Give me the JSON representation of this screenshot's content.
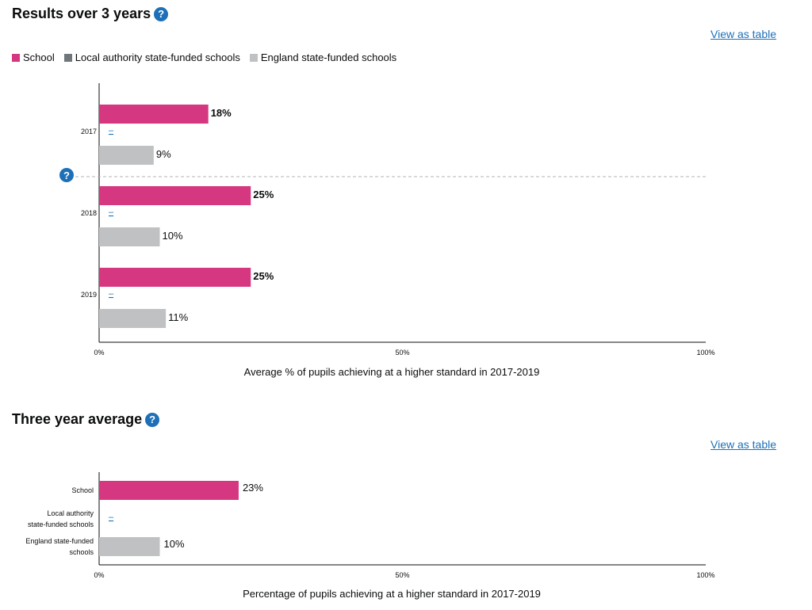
{
  "colors": {
    "school": "#d53880",
    "la": "#6f777b",
    "england": "#bfc1c3",
    "link": "#1d70b8"
  },
  "section1": {
    "title": "Results over 3 years",
    "view_table": "View as table",
    "legend": [
      {
        "label": "School",
        "color": "#d53880"
      },
      {
        "label": "Local authority state-funded schools",
        "color": "#6f777b"
      },
      {
        "label": "England state-funded schools",
        "color": "#bfc1c3"
      }
    ]
  },
  "section2": {
    "title": "Three year average",
    "view_table": "View as table"
  },
  "chart_data": [
    {
      "type": "bar",
      "orientation": "horizontal",
      "categories": [
        "2017",
        "2018",
        "2019"
      ],
      "series": [
        {
          "name": "School",
          "values": [
            18,
            25,
            25
          ],
          "labels": [
            "18%",
            "25%",
            "25%"
          ]
        },
        {
          "name": "Local authority state-funded schools",
          "values": [
            null,
            null,
            null
          ],
          "labels": [
            "–",
            "–",
            "–"
          ]
        },
        {
          "name": "England state-funded schools",
          "values": [
            9,
            10,
            11
          ],
          "labels": [
            "9%",
            "10%",
            "11%"
          ]
        }
      ],
      "xlabel": "Average % of pupils achieving at a higher standard in 2017-2019",
      "xlim": [
        0,
        100
      ],
      "xticks": [
        "0%",
        "50%",
        "100%"
      ]
    },
    {
      "type": "bar",
      "orientation": "horizontal",
      "categories": [
        "School",
        "Local authority state-funded schools",
        "England state-funded schools"
      ],
      "values": [
        23,
        null,
        10
      ],
      "labels": [
        "23%",
        "–",
        "10%"
      ],
      "xlabel": "Percentage of pupils achieving at a higher standard in 2017-2019",
      "xlim": [
        0,
        100
      ],
      "xticks": [
        "0%",
        "50%",
        "100%"
      ]
    }
  ]
}
